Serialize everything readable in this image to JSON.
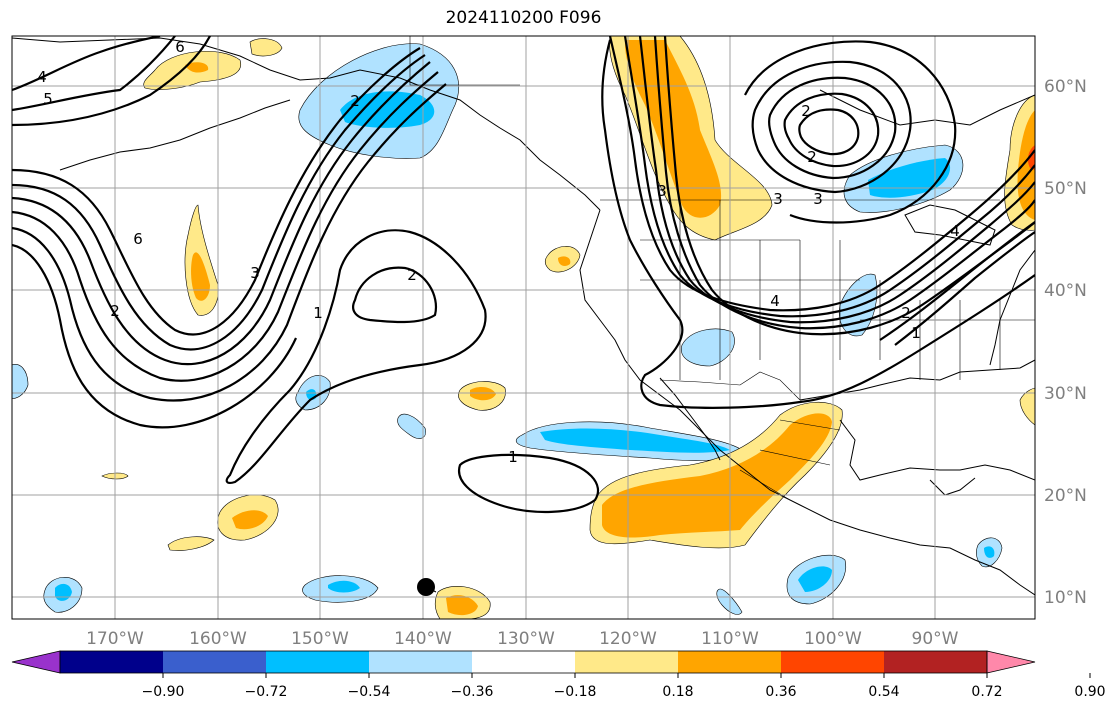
{
  "title": "2024110200 F096",
  "map": {
    "lon_labels": [
      "170°W",
      "160°W",
      "150°W",
      "140°W",
      "130°W",
      "120°W",
      "110°W",
      "100°W",
      "90°W"
    ],
    "lat_labels": [
      "60°N",
      "50°N",
      "40°N",
      "30°N",
      "20°N",
      "10°N"
    ],
    "contour_labels": [
      "6",
      "4",
      "5",
      "2",
      "6",
      "3",
      "2",
      "1",
      "2",
      "1",
      "3",
      "4",
      "2",
      "1",
      "4",
      "2",
      "3",
      "2",
      "3"
    ]
  },
  "colorbar": {
    "tick_labels": [
      "−0.90",
      "−0.72",
      "−0.54",
      "−0.36",
      "−0.18",
      "0.18",
      "0.36",
      "0.54",
      "0.72",
      "0.90"
    ],
    "colors": [
      "#9932cc",
      "#00008b",
      "#3a5fcd",
      "#00bfff",
      "#b0e2ff",
      "#ffffff",
      "#ffe989",
      "#ffa500",
      "#ff4500",
      "#b22222",
      "#ff88aa"
    ]
  },
  "colors": {
    "light_blue": "#b0e2ff",
    "blue": "#00bfff",
    "light_yellow": "#ffe989",
    "orange": "#ffa500",
    "red": "#ff4500",
    "contour": "#000000",
    "grid": "#a0a0a0"
  }
}
